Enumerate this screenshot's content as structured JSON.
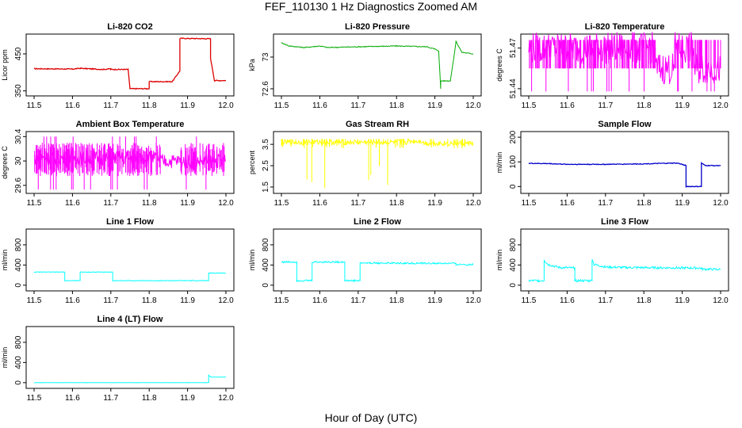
{
  "figure": {
    "title": "FEF_110130  1 Hz Diagnostics Zoomed AM",
    "xlabel": "Hour of Day (UTC)"
  },
  "chart_data": [
    {
      "id": "co2",
      "type": "line",
      "title": "Li-820 CO2",
      "ylabel": "Licor ppm",
      "color": "#dd0000",
      "x": [
        11.5,
        11.6,
        11.62,
        11.68,
        11.7,
        11.7,
        11.745,
        11.75,
        11.8,
        11.8,
        11.86,
        11.88,
        11.88,
        11.96,
        11.96,
        11.97,
        12.0
      ],
      "y": [
        410,
        409,
        411,
        408,
        410,
        408,
        408,
        356,
        356,
        375,
        375,
        404,
        492,
        491,
        438,
        378,
        378
      ],
      "xlim": [
        11.5,
        12.0
      ],
      "ylim": [
        345,
        495
      ],
      "xticks": [
        11.5,
        11.6,
        11.7,
        11.8,
        11.9,
        12.0
      ],
      "yticks": [
        350,
        450
      ]
    },
    {
      "id": "pressure",
      "type": "line",
      "title": "Li-820 Pressure",
      "ylabel": "kPa",
      "color": "#00aa00",
      "x": [
        11.5,
        11.52,
        11.56,
        11.6,
        11.62,
        11.7,
        11.8,
        11.88,
        11.9,
        11.91,
        11.915,
        11.915,
        11.94,
        11.95,
        11.955,
        11.97,
        12.0
      ],
      "y": [
        73.18,
        73.14,
        73.12,
        73.14,
        73.12,
        73.13,
        73.14,
        73.13,
        73.1,
        73.08,
        72.6,
        72.7,
        72.7,
        73.01,
        73.2,
        73.06,
        73.04
      ],
      "xlim": [
        11.5,
        12.0
      ],
      "ylim": [
        72.55,
        73.25
      ],
      "xticks": [
        11.5,
        11.6,
        11.7,
        11.8,
        11.9,
        12.0
      ],
      "yticks": [
        72.6,
        73.0
      ]
    },
    {
      "id": "licor_temp",
      "type": "line",
      "title": "Li-820 Temperature",
      "ylabel": "degrees C",
      "color": "#ff00ff",
      "x": [
        11.5,
        11.83,
        11.83,
        11.88,
        11.88,
        11.93,
        11.93,
        12.0
      ],
      "y": [
        51.47,
        51.47,
        51.455,
        51.455,
        51.47,
        51.47,
        51.455,
        51.455
      ],
      "xlim": [
        11.5,
        12.0
      ],
      "ylim": [
        51.437,
        51.478
      ],
      "xticks": [
        11.5,
        11.6,
        11.7,
        11.8,
        11.9,
        12.0
      ],
      "yticks": [
        51.44,
        51.47
      ]
    },
    {
      "id": "box_temp",
      "type": "line",
      "title": "Ambient Box Temperature",
      "ylabel": "degrees C",
      "color": "#ff00ff",
      "x": [
        11.5,
        11.83,
        11.83,
        11.88,
        11.88,
        12.0
      ],
      "y": [
        30.05,
        30.05,
        30.0,
        30.0,
        30.0,
        30.0
      ],
      "xlim": [
        11.5,
        12.0
      ],
      "ylim": [
        29.52,
        30.43
      ],
      "xticks": [
        11.5,
        11.6,
        11.7,
        11.8,
        11.9,
        12.0
      ],
      "yticks": [
        29.6,
        30.0,
        30.4
      ]
    },
    {
      "id": "rh",
      "type": "line",
      "title": "Gas Stream RH",
      "ylabel": "percent",
      "color": "#ffff00",
      "x": [
        11.5,
        11.83,
        11.83,
        11.87,
        11.87,
        12.0
      ],
      "y": [
        3.6,
        3.6,
        3.65,
        3.65,
        3.55,
        3.55
      ],
      "xlim": [
        11.5,
        12.0
      ],
      "ylim": [
        1.35,
        3.95
      ],
      "xticks": [
        11.5,
        11.6,
        11.7,
        11.8,
        11.9,
        12.0
      ],
      "yticks": [
        1.5,
        2.5,
        3.5
      ]
    },
    {
      "id": "sample_flow",
      "type": "line",
      "title": "Sample Flow",
      "ylabel": "ml/min",
      "color": "#0000cc",
      "x": [
        11.5,
        11.55,
        11.6,
        11.7,
        11.8,
        11.88,
        11.89,
        11.91,
        11.91,
        11.95,
        11.95,
        11.96,
        12.0
      ],
      "y": [
        94,
        93,
        90,
        90,
        92,
        95,
        94,
        85,
        0,
        0,
        95,
        85,
        85
      ],
      "xlim": [
        11.5,
        12.0
      ],
      "ylim": [
        -15,
        210
      ],
      "xticks": [
        11.5,
        11.6,
        11.7,
        11.8,
        11.9,
        12.0
      ],
      "yticks": [
        0,
        100,
        200
      ]
    },
    {
      "id": "line1",
      "type": "line",
      "title": "Line 1 Flow",
      "ylabel": "ml/min",
      "color": "#00ffff",
      "x": [
        11.5,
        11.58,
        11.58,
        11.62,
        11.62,
        11.705,
        11.705,
        11.955,
        11.955,
        12.0
      ],
      "y": [
        260,
        260,
        90,
        90,
        260,
        260,
        90,
        90,
        240,
        240
      ],
      "xlim": [
        11.5,
        12.0
      ],
      "ylim": [
        -50,
        1050
      ],
      "xticks": [
        11.5,
        11.6,
        11.7,
        11.8,
        11.9,
        12.0
      ],
      "yticks": [
        0,
        400,
        800
      ]
    },
    {
      "id": "line2",
      "type": "line",
      "title": "Line 2 Flow",
      "ylabel": "ml/min",
      "color": "#00ffff",
      "x": [
        11.5,
        11.54,
        11.54,
        11.58,
        11.58,
        11.665,
        11.665,
        11.705,
        11.705,
        11.955,
        11.955,
        12.0
      ],
      "y": [
        460,
        460,
        90,
        90,
        460,
        460,
        90,
        90,
        440,
        430,
        410,
        410
      ],
      "xlim": [
        11.5,
        12.0
      ],
      "ylim": [
        -50,
        1050
      ],
      "xticks": [
        11.5,
        11.6,
        11.7,
        11.8,
        11.9,
        12.0
      ],
      "yticks": [
        0,
        400,
        800
      ]
    },
    {
      "id": "line3",
      "type": "line",
      "title": "Line 3 Flow",
      "ylabel": "ml/min",
      "color": "#00ffff",
      "x": [
        11.5,
        11.54,
        11.54,
        11.55,
        11.58,
        11.62,
        11.62,
        11.665,
        11.665,
        11.67,
        11.7,
        11.75,
        11.95,
        11.95,
        12.0
      ],
      "y": [
        90,
        90,
        500,
        410,
        350,
        340,
        90,
        90,
        530,
        410,
        360,
        350,
        340,
        320,
        310
      ],
      "xlim": [
        11.5,
        12.0
      ],
      "ylim": [
        -50,
        1050
      ],
      "xticks": [
        11.5,
        11.6,
        11.7,
        11.8,
        11.9,
        12.0
      ],
      "yticks": [
        0,
        400,
        800
      ]
    },
    {
      "id": "line4",
      "type": "line",
      "title": "Line 4 (LT) Flow",
      "ylabel": "ml/min",
      "color": "#00ffff",
      "x": [
        11.5,
        11.955,
        11.955,
        11.96,
        12.0
      ],
      "y": [
        0,
        0,
        150,
        110,
        110
      ],
      "xlim": [
        11.5,
        12.0
      ],
      "ylim": [
        -50,
        1050
      ],
      "xticks": [
        11.5,
        11.6,
        11.7,
        11.8,
        11.9,
        12.0
      ],
      "yticks": [
        0,
        400,
        800
      ]
    }
  ]
}
